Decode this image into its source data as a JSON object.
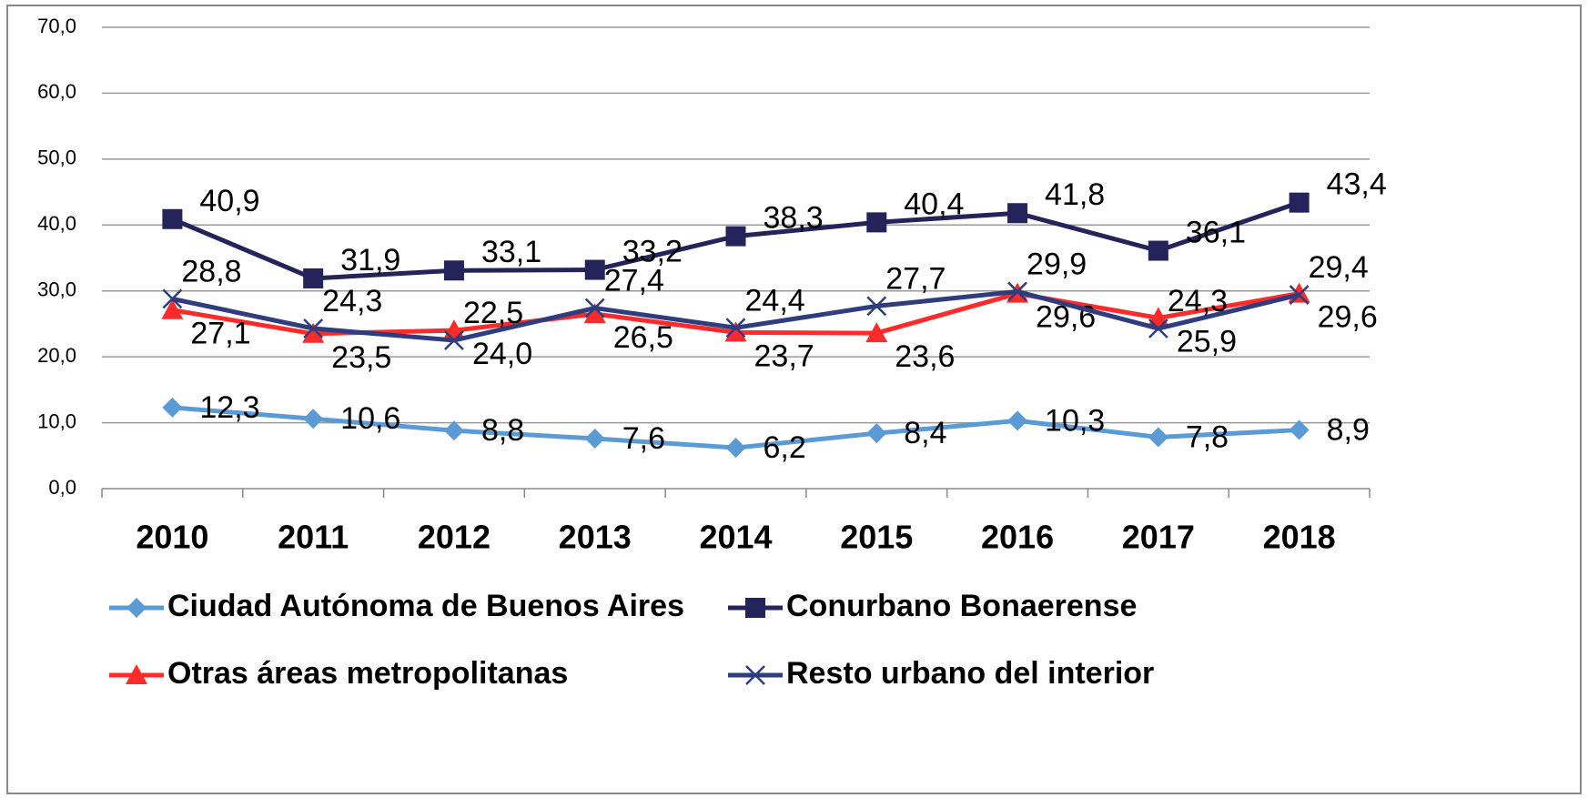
{
  "chart_data": {
    "type": "line",
    "categories": [
      "2010",
      "2011",
      "2012",
      "2013",
      "2014",
      "2015",
      "2016",
      "2017",
      "2018"
    ],
    "series": [
      {
        "name": "Ciudad Autónoma de Buenos Aires",
        "color": "#5b9bd5",
        "marker": "diamond",
        "values": [
          12.3,
          10.6,
          8.8,
          7.6,
          6.2,
          8.4,
          10.3,
          7.8,
          8.9
        ],
        "value_labels": [
          "12,3",
          "10,6",
          "8,8",
          "7,6",
          "6,2",
          "8,4",
          "10,3",
          "7,8",
          "8,9"
        ]
      },
      {
        "name": "Conurbano Bonaerense",
        "color": "#24235a",
        "marker": "square",
        "values": [
          40.9,
          31.9,
          33.1,
          33.2,
          38.3,
          40.4,
          41.8,
          36.1,
          43.4
        ],
        "value_labels": [
          "40,9",
          "31,9",
          "33,1",
          "33,2",
          "38,3",
          "40,4",
          "41,8",
          "36,1",
          "43,4"
        ]
      },
      {
        "name": "Otras áreas metropolitanas",
        "color": "#ff2b2b",
        "marker": "triangle",
        "values": [
          27.1,
          23.5,
          24.0,
          26.5,
          23.7,
          23.6,
          29.6,
          25.9,
          29.6
        ],
        "value_labels": [
          "27,1",
          "23,5",
          "24,0",
          "26,5",
          "23,7",
          "23,6",
          "29,6",
          "25,9",
          "29,6"
        ]
      },
      {
        "name": "Resto urbano del interior",
        "color": "#2f3c7e",
        "marker": "x",
        "values": [
          28.8,
          24.3,
          22.5,
          27.4,
          24.4,
          27.7,
          29.9,
          24.3,
          29.4
        ],
        "value_labels": [
          "28,8",
          "24,3",
          "22,5",
          "27,4",
          "24,4",
          "27,7",
          "29,9",
          "24,3",
          "29,4"
        ]
      }
    ],
    "ylim": [
      0,
      70
    ],
    "yticks": [
      {
        "value": 0,
        "label": "0,0"
      },
      {
        "value": 10,
        "label": "10,0"
      },
      {
        "value": 20,
        "label": "20,0"
      },
      {
        "value": 30,
        "label": "30,0"
      },
      {
        "value": 40,
        "label": "40,0"
      },
      {
        "value": 50,
        "label": "50,0"
      },
      {
        "value": 60,
        "label": "60,0"
      },
      {
        "value": 70,
        "label": "70,0"
      }
    ],
    "grid": true,
    "legend": "bottom"
  }
}
